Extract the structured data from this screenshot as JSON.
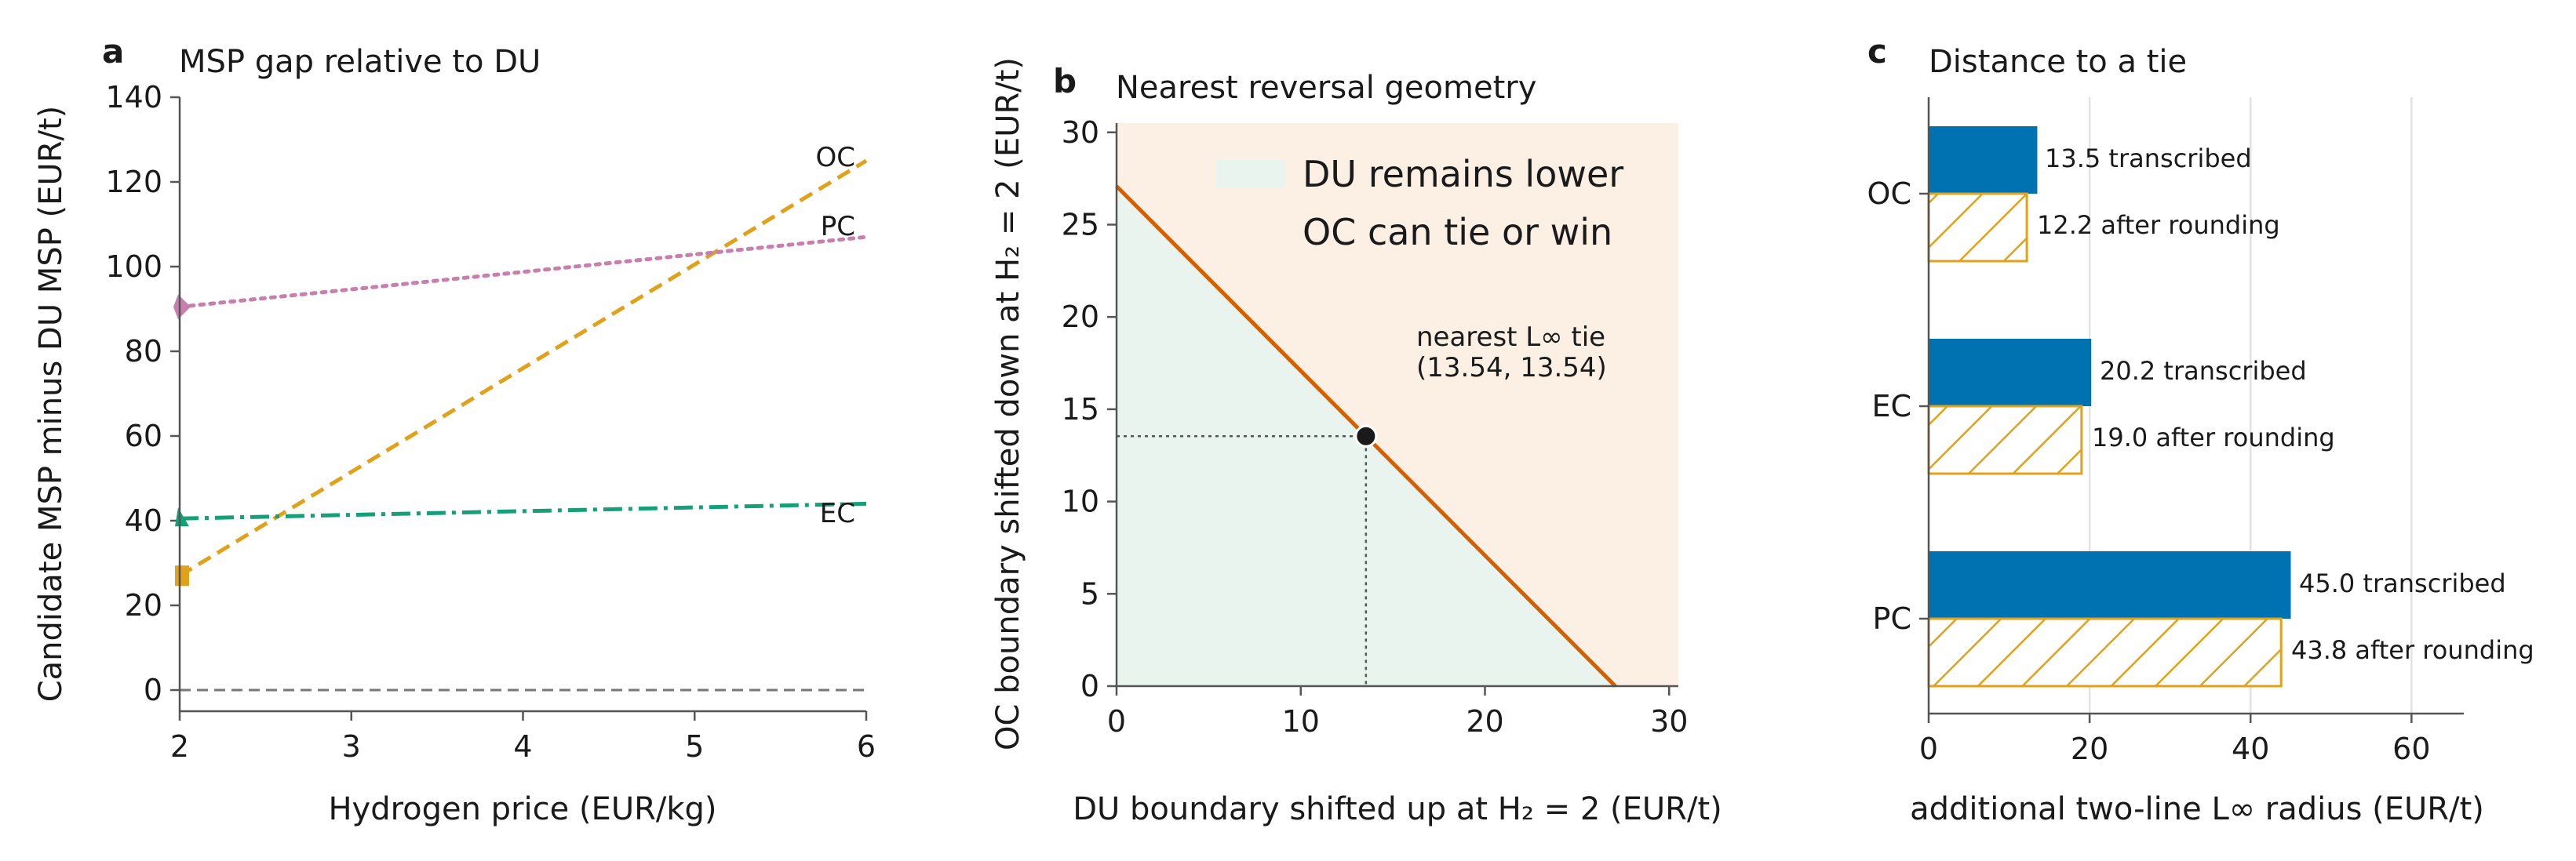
{
  "colors": {
    "oc": "#E0A11B",
    "pc": "#C97FAE",
    "ec": "#15A07A",
    "blue": "#0072B2",
    "orange_line": "#D55E00",
    "du_fill": "#E9F4EF",
    "oc_fill": "#FCF0E4",
    "axis": "#555555",
    "text": "#1a1a1a"
  },
  "panels": {
    "a": {
      "letter": "a",
      "title": "MSP gap relative to DU",
      "xlabel": "Hydrogen price (EUR/kg)",
      "ylabel": "Candidate MSP minus DU MSP (EUR/t)",
      "xticks": [
        "2",
        "3",
        "4",
        "5",
        "6"
      ],
      "yticks": [
        "0",
        "20",
        "40",
        "60",
        "80",
        "100",
        "120",
        "140"
      ],
      "labels": {
        "oc": "OC",
        "pc": "PC",
        "ec": "EC"
      }
    },
    "b": {
      "letter": "b",
      "title": "Nearest reversal geometry",
      "xlabel": "DU boundary shifted up at H₂ = 2 (EUR/t)",
      "ylabel": "OC boundary shifted down at H₂ = 2 (EUR/t)",
      "xticks": [
        "0",
        "10",
        "20",
        "30"
      ],
      "yticks": [
        "0",
        "5",
        "10",
        "15",
        "20",
        "25",
        "30"
      ],
      "legend": {
        "du": "DU remains lower",
        "oc": "OC can tie or win"
      },
      "annotation_line1": "nearest L∞ tie",
      "annotation_line2": "(13.54, 13.54)"
    },
    "c": {
      "letter": "c",
      "title": "Distance to a tie",
      "xlabel": "additional two-line L∞ radius (EUR/t)",
      "xticks": [
        "0",
        "20",
        "40",
        "60"
      ],
      "categories": [
        "OC",
        "EC",
        "PC"
      ],
      "bar_labels": {
        "oc_t": "13.5 transcribed",
        "oc_r": "12.2 after rounding",
        "ec_t": "20.2 transcribed",
        "ec_r": "19.0 after rounding",
        "pc_t": "45.0 transcribed",
        "pc_r": "43.8 after rounding"
      }
    }
  },
  "chart_data": [
    {
      "type": "line",
      "title": "MSP gap relative to DU",
      "xlabel": "Hydrogen price (EUR/kg)",
      "ylabel": "Candidate MSP minus DU MSP (EUR/t)",
      "xlim": [
        2,
        6
      ],
      "ylim": [
        -5,
        140
      ],
      "x": [
        2,
        6
      ],
      "series": [
        {
          "name": "OC",
          "values": [
            27,
            125
          ],
          "style": "dashed",
          "marker": "square"
        },
        {
          "name": "PC",
          "values": [
            90.5,
            107
          ],
          "style": "dotted",
          "marker": "diamond"
        },
        {
          "name": "EC",
          "values": [
            40.5,
            44
          ],
          "style": "dashdot",
          "marker": "triangle"
        }
      ],
      "reference_line_y": 0
    },
    {
      "type": "area",
      "title": "Nearest reversal geometry",
      "xlabel": "DU boundary shifted up at H₂ = 2 (EUR/t)",
      "ylabel": "OC boundary shifted down at H₂ = 2 (EUR/t)",
      "xlim": [
        0,
        30.5
      ],
      "ylim": [
        0,
        30.5
      ],
      "boundary_line": {
        "x": [
          0,
          27.08
        ],
        "y": [
          27.08,
          0
        ]
      },
      "tie_point": [
        13.54,
        13.54
      ],
      "regions": [
        "DU remains lower",
        "OC can tie or win"
      ]
    },
    {
      "type": "bar",
      "orientation": "horizontal",
      "title": "Distance to a tie",
      "xlabel": "additional two-line L∞ radius (EUR/t)",
      "xlim": [
        0,
        66.5
      ],
      "categories": [
        "OC",
        "EC",
        "PC"
      ],
      "series": [
        {
          "name": "transcribed",
          "values": [
            13.5,
            20.2,
            45.0
          ]
        },
        {
          "name": "after rounding",
          "values": [
            12.2,
            19.0,
            43.8
          ]
        }
      ]
    }
  ]
}
